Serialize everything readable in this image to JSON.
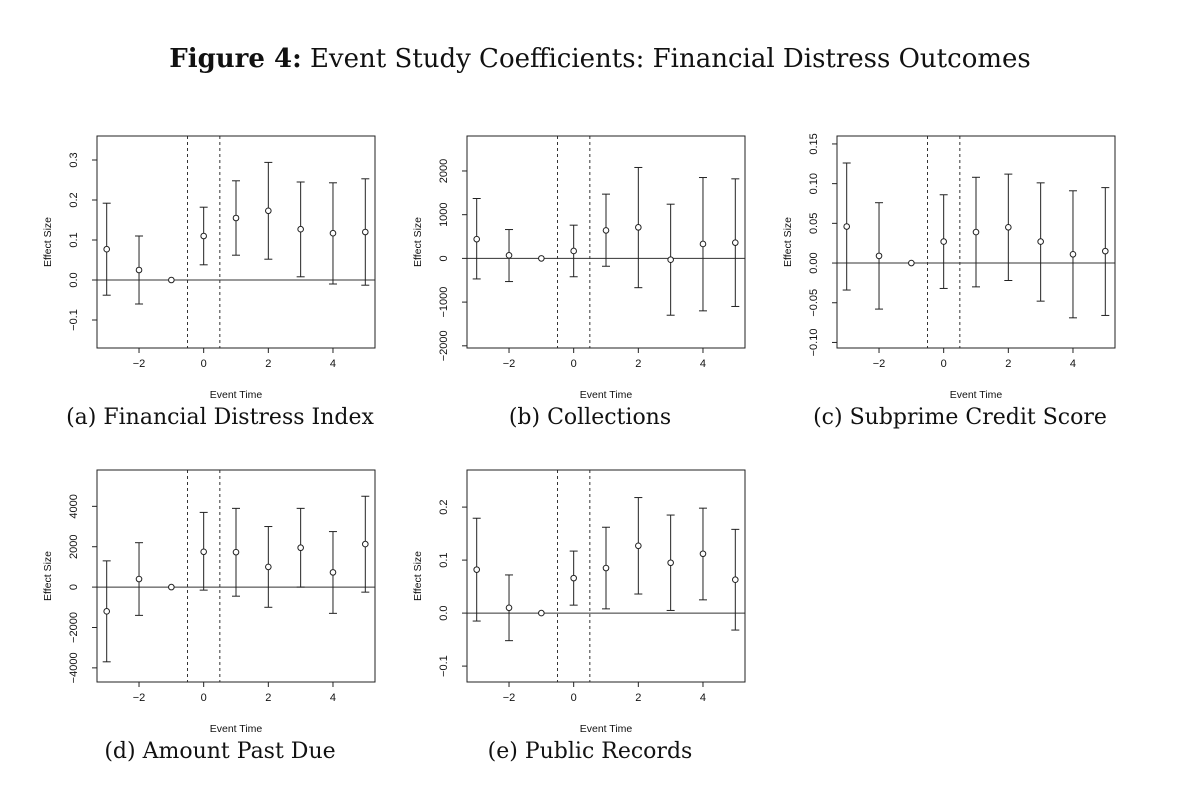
{
  "figure": {
    "label": "Figure 4:",
    "title": "Event Study Coefficients: Financial Distress Outcomes"
  },
  "chart_data": [
    {
      "type": "scatter",
      "caption": "(a) Financial Distress Index",
      "xlabel": "Event Time",
      "ylabel": "Effect Size",
      "xlim": [
        -3.3,
        5.3
      ],
      "ylim": [
        -0.17,
        0.36
      ],
      "xticks": [
        -2,
        0,
        2,
        4
      ],
      "yticks": [
        -0.1,
        0.0,
        0.1,
        0.2,
        0.3
      ],
      "yticklabels": [
        "-0.1",
        "0.0",
        "0.1",
        "0.2",
        "0.3"
      ],
      "vlines": [
        -0.5,
        0.5
      ],
      "hline": 0,
      "x": [
        -3,
        -2,
        -1,
        0,
        1,
        2,
        3,
        4,
        5
      ],
      "y": [
        0.077,
        0.025,
        0.0,
        0.11,
        0.155,
        0.173,
        0.127,
        0.117,
        0.12
      ],
      "lower": [
        -0.038,
        -0.06,
        0.0,
        0.038,
        0.062,
        0.052,
        0.008,
        -0.01,
        -0.013
      ],
      "upper": [
        0.192,
        0.11,
        0.0,
        0.182,
        0.248,
        0.294,
        0.245,
        0.243,
        0.253
      ]
    },
    {
      "type": "scatter",
      "caption": "(b) Collections",
      "xlabel": "Event Time",
      "ylabel": "Effect Size",
      "xlim": [
        -3.3,
        5.3
      ],
      "ylim": [
        -2050,
        2800
      ],
      "xticks": [
        -2,
        0,
        2,
        4
      ],
      "yticks": [
        -2000,
        -1000,
        0,
        1000,
        2000
      ],
      "yticklabels": [
        "-2000",
        "-1000",
        "0",
        "1000",
        "2000"
      ],
      "vlines": [
        -0.5,
        0.5
      ],
      "hline": 0,
      "x": [
        -3,
        -2,
        -1,
        0,
        1,
        2,
        3,
        4,
        5
      ],
      "y": [
        440,
        70,
        0,
        170,
        640,
        710,
        -30,
        330,
        360
      ],
      "lower": [
        -470,
        -530,
        0,
        -420,
        -180,
        -670,
        -1300,
        -1200,
        -1100
      ],
      "upper": [
        1370,
        660,
        0,
        760,
        1470,
        2080,
        1240,
        1850,
        1820
      ]
    },
    {
      "type": "scatter",
      "caption": "(c) Subprime Credit Score",
      "xlabel": "Event Time",
      "ylabel": "Effect Size",
      "xlim": [
        -3.3,
        5.3
      ],
      "ylim": [
        -0.107,
        0.16
      ],
      "xticks": [
        -2,
        0,
        2,
        4
      ],
      "yticks": [
        -0.1,
        -0.05,
        0.0,
        0.05,
        0.1,
        0.15
      ],
      "yticklabels": [
        "-0.10",
        "-0.05",
        "0.00",
        "0.05",
        "0.10",
        "0.15"
      ],
      "vlines": [
        -0.5,
        0.5
      ],
      "hline": 0,
      "x": [
        -3,
        -2,
        -1,
        0,
        1,
        2,
        3,
        4,
        5
      ],
      "y": [
        0.046,
        0.009,
        0.0,
        0.027,
        0.039,
        0.045,
        0.027,
        0.011,
        0.015
      ],
      "lower": [
        -0.034,
        -0.058,
        0.0,
        -0.032,
        -0.03,
        -0.022,
        -0.048,
        -0.069,
        -0.066
      ],
      "upper": [
        0.126,
        0.076,
        0.0,
        0.086,
        0.108,
        0.112,
        0.101,
        0.091,
        0.095
      ]
    },
    {
      "type": "scatter",
      "caption": "(d) Amount Past Due",
      "xlabel": "Event Time",
      "ylabel": "Effect Size",
      "xlim": [
        -3.3,
        5.3
      ],
      "ylim": [
        -4700,
        5800
      ],
      "xticks": [
        -2,
        0,
        2,
        4
      ],
      "yticks": [
        -4000,
        -2000,
        0,
        2000,
        4000
      ],
      "yticklabels": [
        "-4000",
        "-2000",
        "0",
        "2000",
        "4000"
      ],
      "vlines": [
        -0.5,
        0.5
      ],
      "hline": 0,
      "x": [
        -3,
        -2,
        -1,
        0,
        1,
        2,
        3,
        4,
        5
      ],
      "y": [
        -1200,
        400,
        0,
        1750,
        1730,
        1000,
        1950,
        730,
        2130
      ],
      "lower": [
        -3700,
        -1400,
        0,
        -150,
        -450,
        -1000,
        0,
        -1300,
        -250
      ],
      "upper": [
        1300,
        2200,
        0,
        3700,
        3900,
        3000,
        3900,
        2750,
        4500
      ]
    },
    {
      "type": "scatter",
      "caption": "(e) Public Records",
      "xlabel": "Event Time",
      "ylabel": "Effect Size",
      "xlim": [
        -3.3,
        5.3
      ],
      "ylim": [
        -0.13,
        0.27
      ],
      "xticks": [
        -2,
        0,
        2,
        4
      ],
      "yticks": [
        -0.1,
        0.0,
        0.1,
        0.2
      ],
      "yticklabels": [
        "-0.1",
        "0.0",
        "0.1",
        "0.2"
      ],
      "vlines": [
        -0.5,
        0.5
      ],
      "hline": 0,
      "x": [
        -3,
        -2,
        -1,
        0,
        1,
        2,
        3,
        4,
        5
      ],
      "y": [
        0.082,
        0.01,
        0.0,
        0.066,
        0.085,
        0.127,
        0.095,
        0.112,
        0.063
      ],
      "lower": [
        -0.015,
        -0.052,
        0.0,
        0.015,
        0.008,
        0.036,
        0.005,
        0.025,
        -0.032
      ],
      "upper": [
        0.179,
        0.072,
        0.0,
        0.117,
        0.162,
        0.218,
        0.185,
        0.198,
        0.158
      ]
    }
  ]
}
